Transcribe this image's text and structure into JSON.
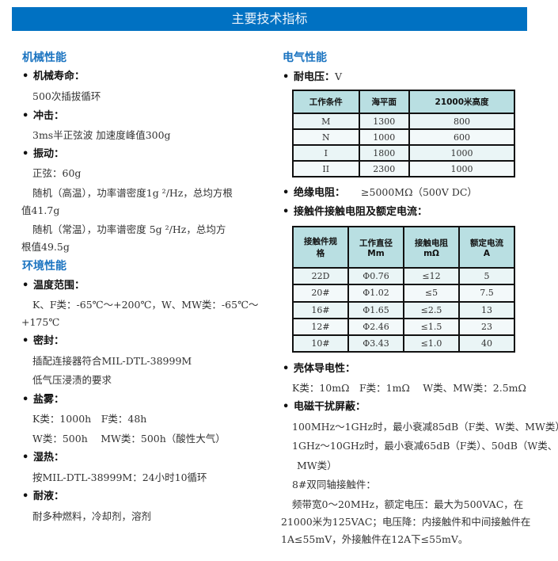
{
  "title": "主要技术指标",
  "colors": {
    "title_bar": "#0071c2",
    "heading": "#1a73c0",
    "table_header": "#b9dfe2"
  },
  "mech": {
    "heading": "机械性能",
    "life_label": "机械寿命：",
    "life": "500次插拔循环",
    "shock_label": "冲击：",
    "shock": "3ms半正弦波 加速度峰值300g",
    "vib_label": "振动：",
    "vib_sine": "正弦：60g",
    "vib_hot1": "随机（高温），功率谱密度1g ²/Hz，总均方根",
    "vib_hot2": "值41.7g",
    "vib_norm1": "随机（常温），功率谱密度 5g ²/Hz，总均方",
    "vib_norm2": "根值49.5g"
  },
  "env": {
    "heading": "环境性能",
    "temp_label": "温度范围：",
    "temp1": "K、F类：-65℃～+200℃，W、MW类：-65℃～",
    "temp2": "+175℃",
    "seal_label": "密封：",
    "seal1": "插配连接器符合MIL-DTL-38999M",
    "seal2": "低气压浸渍的要求",
    "salt_label": "盐雾：",
    "salt1": "K类：1000h　F类：48h",
    "salt2": "W类：500h　 MW类：500h（酸性大气）",
    "humid_label": "湿热：",
    "humid": "按MIL-DTL-38999M：24小时10循环",
    "fluid_label": "耐液：",
    "fluid": "耐多种燃料，冷却剂，溶剂"
  },
  "elec": {
    "heading": "电气性能",
    "voltage_label": "耐电压：",
    "voltage_unit": "V",
    "voltage_table": {
      "headers": [
        "工作条件",
        "海平面",
        "21000米高度"
      ],
      "rows": [
        [
          "M",
          "1300",
          "800"
        ],
        [
          "N",
          "1000",
          "600"
        ],
        [
          "I",
          "1800",
          "1000"
        ],
        [
          "II",
          "2300",
          "1000"
        ]
      ]
    },
    "insul_label": "绝缘电阻：",
    "insul": "≥5000MΩ（500V DC）",
    "contact_label": "接触件接触电阻及额定电流：",
    "contact_table": {
      "headers": [
        [
          "接触件规",
          "格"
        ],
        [
          "工作直径",
          "Mm"
        ],
        [
          "接触电阻",
          "mΩ"
        ],
        [
          "额定电流",
          "A"
        ]
      ],
      "rows": [
        [
          "22D",
          "Φ0.76",
          "≤12",
          "5"
        ],
        [
          "20#",
          "Φ1.02",
          "≤5",
          "7.5"
        ],
        [
          "16#",
          "Φ1.65",
          "≤2.5",
          "13"
        ],
        [
          "12#",
          "Φ2.46",
          "≤1.5",
          "23"
        ],
        [
          "10#",
          "Φ3.43",
          "≤1.0",
          "40"
        ]
      ]
    },
    "shell_label": "壳体导电性：",
    "shell": "K类：10mΩ　F类：1mΩ　 W类、MW类：2.5mΩ",
    "emi_label": "电磁干扰屏蔽：",
    "emi1": "100MHz～1GHz时，最小衰减85dB（F类、W类、MW类）",
    "emi2": "1GHz～10GHz时，最小衰减65dB（F类）、50dB（W类、",
    "emi3": "MW类）",
    "coax": "8#双同轴接触件：",
    "coax1": "频带宽0～20MHz，额定电压：最大为500VAC，在",
    "coax2": "21000米为125VAC；电压降：内接触件和中间接触件在",
    "coax3": "1A≤55mV，外接触件在12A下≤55mV。"
  }
}
